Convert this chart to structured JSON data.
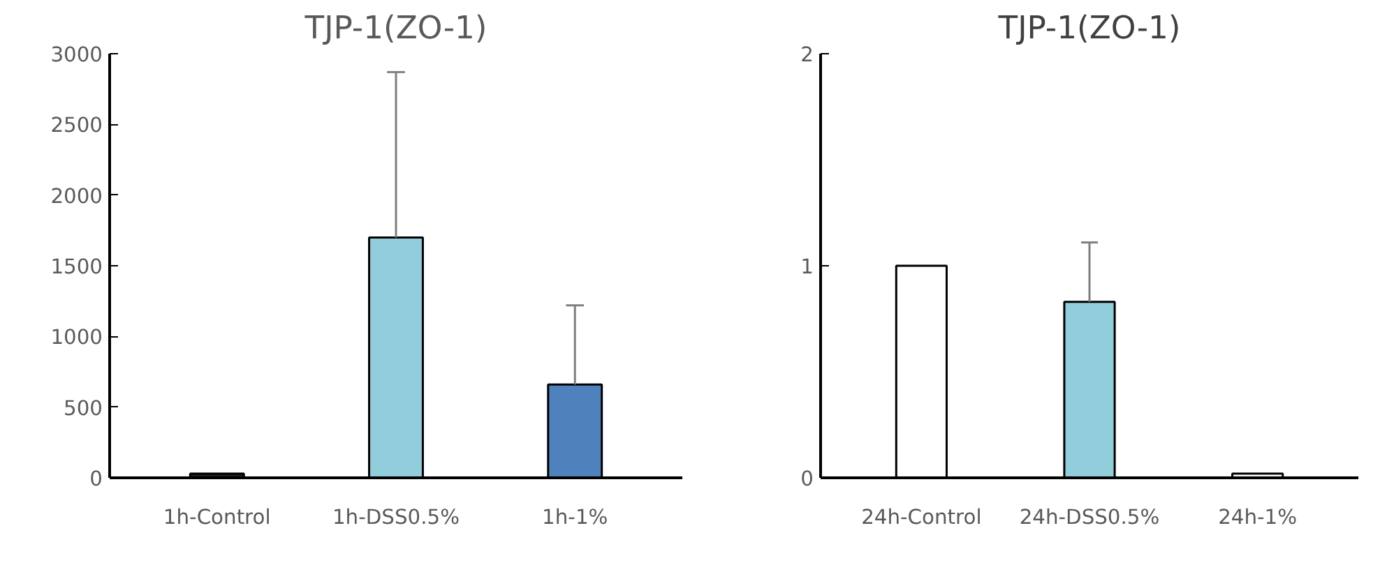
{
  "chart_data": [
    {
      "type": "bar",
      "title": "TJP-1(ZO-1)",
      "categories": [
        "1h-Control",
        "1h-DSS0.5%",
        "1h-1%"
      ],
      "values": [
        30,
        1700,
        660
      ],
      "colors": [
        "#1f1f1f",
        "#92cddc",
        "#4f81bd"
      ],
      "errors": [
        null,
        [
          1700,
          2870
        ],
        [
          660,
          1220
        ]
      ],
      "ylim": [
        0,
        3000
      ],
      "yticks": [
        0,
        500,
        1000,
        1500,
        2000,
        2500,
        3000
      ]
    },
    {
      "type": "bar",
      "title": "TJP-1(ZO-1)",
      "categories": [
        "24h-Control",
        "24h-DSS0.5%",
        "24h-1%"
      ],
      "values": [
        1,
        0.83,
        0.02
      ],
      "colors": [
        "#ffffff",
        "#92cddc",
        "#ffffff"
      ],
      "errors": [
        null,
        [
          0.83,
          1.11
        ],
        null
      ],
      "ylim": [
        0,
        2
      ],
      "yticks": [
        0,
        1,
        2
      ]
    }
  ]
}
